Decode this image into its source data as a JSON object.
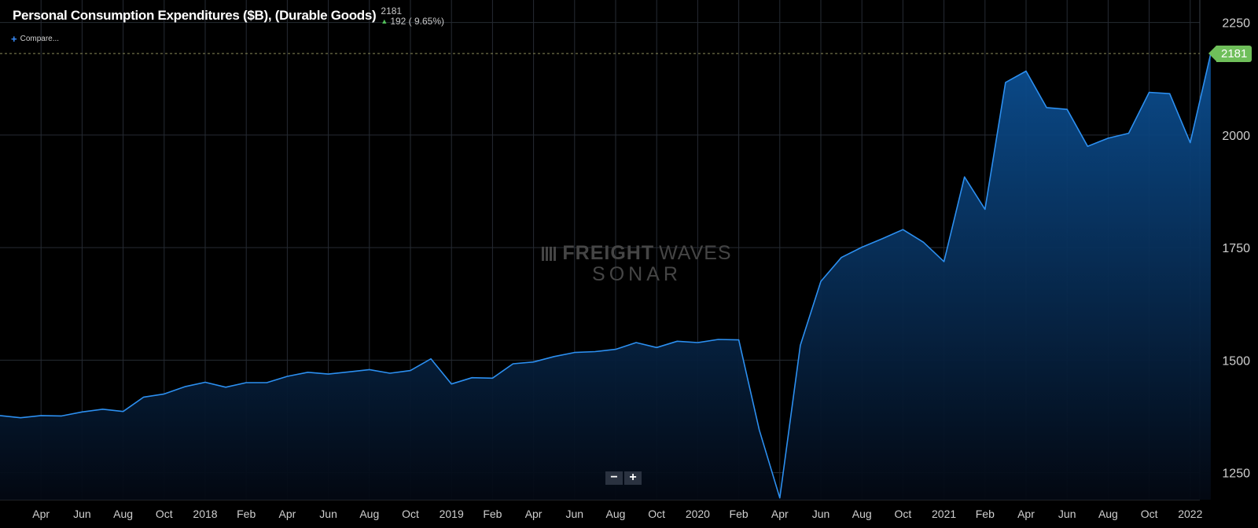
{
  "header": {
    "title": "Personal Consumption Expenditures ($B), (Durable Goods)",
    "last_value": "2181",
    "change": "192 ( 9.65%)"
  },
  "compare_label": "Compare...",
  "watermark": {
    "line1_bold": "FREIGHT",
    "line1_light": "WAVES",
    "line2": "SONAR"
  },
  "zoom": {
    "out": "−",
    "in": "+"
  },
  "last_badge": "2181",
  "colors": {
    "line": "#2c8ff0",
    "fill_top": "#0b4f93",
    "grid": "#262b33",
    "accent_badge": "#6fbf5a"
  },
  "chart_data": {
    "type": "area",
    "title": "Personal Consumption Expenditures ($B), (Durable Goods)",
    "x_tick_labels": [
      "Apr",
      "Jun",
      "Aug",
      "Oct",
      "2018",
      "Feb",
      "Apr",
      "Jun",
      "Aug",
      "Oct",
      "2019",
      "Feb",
      "Apr",
      "Jun",
      "Aug",
      "Oct",
      "2020",
      "Feb",
      "Apr",
      "Jun",
      "Aug",
      "Oct",
      "2021",
      "Feb",
      "Apr",
      "Jun",
      "Aug",
      "Oct",
      "2022"
    ],
    "y_ticks": [
      1250,
      1500,
      1750,
      2000,
      2250
    ],
    "ylim": [
      1190,
      2300
    ],
    "grid": true,
    "x": [
      "2017-02",
      "2017-03",
      "2017-04",
      "2017-05",
      "2017-06",
      "2017-07",
      "2017-08",
      "2017-09",
      "2017-10",
      "2017-11",
      "2017-12",
      "2018-01",
      "2018-02",
      "2018-03",
      "2018-04",
      "2018-05",
      "2018-06",
      "2018-07",
      "2018-08",
      "2018-09",
      "2018-10",
      "2018-11",
      "2018-12",
      "2019-01",
      "2019-02",
      "2019-03",
      "2019-04",
      "2019-05",
      "2019-06",
      "2019-07",
      "2019-08",
      "2019-09",
      "2019-10",
      "2019-11",
      "2019-12",
      "2020-01",
      "2020-02",
      "2020-03",
      "2020-04",
      "2020-05",
      "2020-06",
      "2020-07",
      "2020-08",
      "2020-09",
      "2020-10",
      "2020-11",
      "2020-12",
      "2021-01",
      "2021-02",
      "2021-03",
      "2021-04",
      "2021-05",
      "2021-06",
      "2021-07",
      "2021-08",
      "2021-09",
      "2021-10",
      "2021-11",
      "2021-12",
      "2022-01"
    ],
    "values": [
      1377,
      1372,
      1377,
      1376,
      1385,
      1391,
      1386,
      1418,
      1425,
      1441,
      1451,
      1440,
      1450,
      1450,
      1464,
      1473,
      1469,
      1474,
      1479,
      1471,
      1477,
      1503,
      1447,
      1461,
      1460,
      1492,
      1496,
      1508,
      1517,
      1519,
      1524,
      1539,
      1528,
      1542,
      1539,
      1546,
      1545,
      1345,
      1194,
      1533,
      1675,
      1728,
      1751,
      1770,
      1790,
      1762,
      1719,
      1907,
      1835,
      2117,
      2142,
      2061,
      2057,
      1975,
      1993,
      2004,
      2095,
      2092,
      1983,
      2181
    ]
  }
}
